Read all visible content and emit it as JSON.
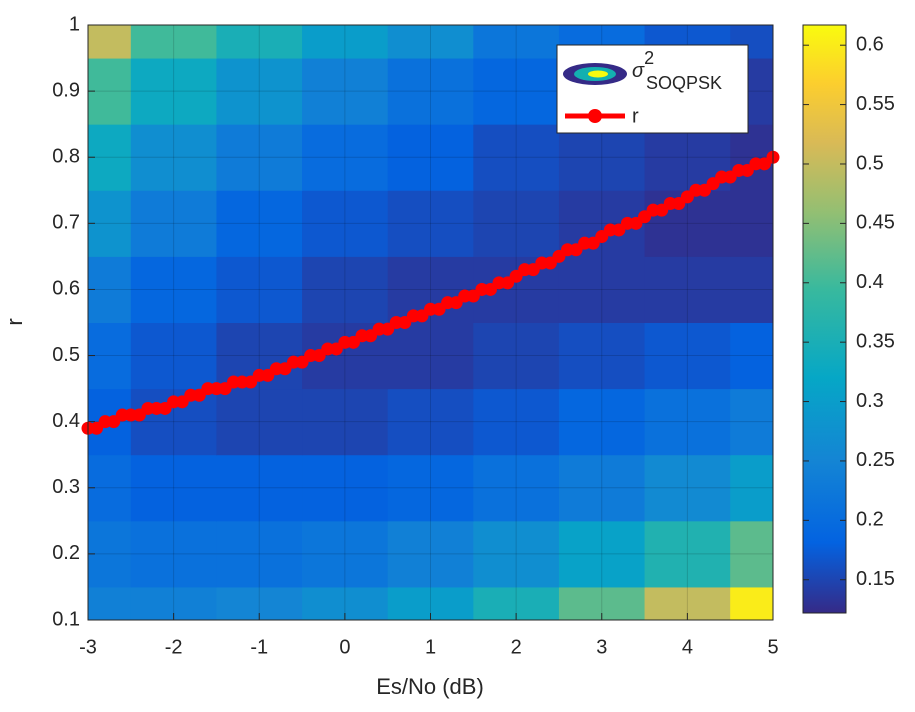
{
  "chart_data": {
    "type": "heatmap",
    "x_label": "Es/No (dB)",
    "y_label": "r",
    "xlim": [
      -3,
      5
    ],
    "ylim": [
      0.1,
      1
    ],
    "xticks": [
      -3,
      -2,
      -1,
      0,
      1,
      2,
      3,
      4,
      5
    ],
    "yticks": [
      0.1,
      0.2,
      0.3,
      0.4,
      0.5,
      0.6,
      0.7,
      0.8,
      0.9,
      1
    ],
    "grid": true,
    "colormap": "parula",
    "clim": [
      0.122,
      0.617
    ],
    "cticks": [
      0.15,
      0.2,
      0.25,
      0.3,
      0.35,
      0.4,
      0.45,
      0.5,
      0.55,
      0.6
    ],
    "legend": "upper right",
    "heatmap": {
      "name": {
        "base": "σ",
        "sup": "2",
        "sub": "SOQPSK"
      },
      "x": [
        -3,
        -2,
        -1,
        0,
        1,
        2,
        3,
        4,
        5
      ],
      "y": [
        0.1,
        0.2,
        0.3,
        0.4,
        0.5,
        0.6,
        0.7,
        0.8,
        0.9,
        1
      ],
      "z": [
        [
          0.24,
          0.24,
          0.25,
          0.27,
          0.3,
          0.35,
          0.42,
          0.5,
          0.6
        ],
        [
          0.22,
          0.21,
          0.21,
          0.22,
          0.24,
          0.27,
          0.31,
          0.36,
          0.42
        ],
        [
          0.2,
          0.18,
          0.18,
          0.18,
          0.19,
          0.21,
          0.23,
          0.26,
          0.3
        ],
        [
          0.18,
          0.16,
          0.15,
          0.15,
          0.16,
          0.17,
          0.19,
          0.21,
          0.23
        ],
        [
          0.2,
          0.17,
          0.15,
          0.14,
          0.14,
          0.15,
          0.16,
          0.17,
          0.18
        ],
        [
          0.23,
          0.19,
          0.17,
          0.15,
          0.14,
          0.14,
          0.14,
          0.14,
          0.14
        ],
        [
          0.28,
          0.23,
          0.19,
          0.17,
          0.16,
          0.15,
          0.14,
          0.13,
          0.13
        ],
        [
          0.33,
          0.27,
          0.23,
          0.2,
          0.18,
          0.16,
          0.15,
          0.14,
          0.13
        ],
        [
          0.4,
          0.33,
          0.28,
          0.24,
          0.21,
          0.19,
          0.17,
          0.15,
          0.14
        ],
        [
          0.5,
          0.4,
          0.35,
          0.3,
          0.27,
          0.22,
          0.2,
          0.17,
          0.16
        ]
      ]
    },
    "series": [
      {
        "name": "r",
        "color": "#ff0000",
        "x": [
          -3,
          -2.9,
          -2.8,
          -2.7,
          -2.6,
          -2.5,
          -2.4,
          -2.3,
          -2.2,
          -2.1,
          -2,
          -1.9,
          -1.8,
          -1.7,
          -1.6,
          -1.5,
          -1.4,
          -1.3,
          -1.2,
          -1.1,
          -1,
          -0.9,
          -0.8,
          -0.7,
          -0.6,
          -0.5,
          -0.4,
          -0.3,
          -0.2,
          -0.1,
          0,
          0.1,
          0.2,
          0.3,
          0.4,
          0.5,
          0.6,
          0.7,
          0.8,
          0.9,
          1,
          1.1,
          1.2,
          1.3,
          1.4,
          1.5,
          1.6,
          1.7,
          1.8,
          1.9,
          2,
          2.1,
          2.2,
          2.3,
          2.4,
          2.5,
          2.6,
          2.7,
          2.8,
          2.9,
          3,
          3.1,
          3.2,
          3.3,
          3.4,
          3.5,
          3.6,
          3.7,
          3.8,
          3.9,
          4,
          4.1,
          4.2,
          4.3,
          4.4,
          4.5,
          4.6,
          4.7,
          4.8,
          4.9,
          5
        ],
        "values": [
          0.39,
          0.39,
          0.4,
          0.4,
          0.41,
          0.41,
          0.41,
          0.42,
          0.42,
          0.42,
          0.43,
          0.43,
          0.44,
          0.44,
          0.45,
          0.45,
          0.45,
          0.46,
          0.46,
          0.46,
          0.47,
          0.47,
          0.48,
          0.48,
          0.49,
          0.49,
          0.5,
          0.5,
          0.51,
          0.51,
          0.52,
          0.52,
          0.53,
          0.53,
          0.54,
          0.54,
          0.55,
          0.55,
          0.56,
          0.56,
          0.57,
          0.57,
          0.58,
          0.58,
          0.59,
          0.59,
          0.6,
          0.6,
          0.61,
          0.61,
          0.62,
          0.63,
          0.63,
          0.64,
          0.64,
          0.65,
          0.66,
          0.66,
          0.67,
          0.67,
          0.68,
          0.69,
          0.69,
          0.7,
          0.7,
          0.71,
          0.72,
          0.72,
          0.73,
          0.73,
          0.74,
          0.75,
          0.75,
          0.76,
          0.77,
          0.77,
          0.78,
          0.78,
          0.79,
          0.79,
          0.8
        ]
      }
    ]
  }
}
